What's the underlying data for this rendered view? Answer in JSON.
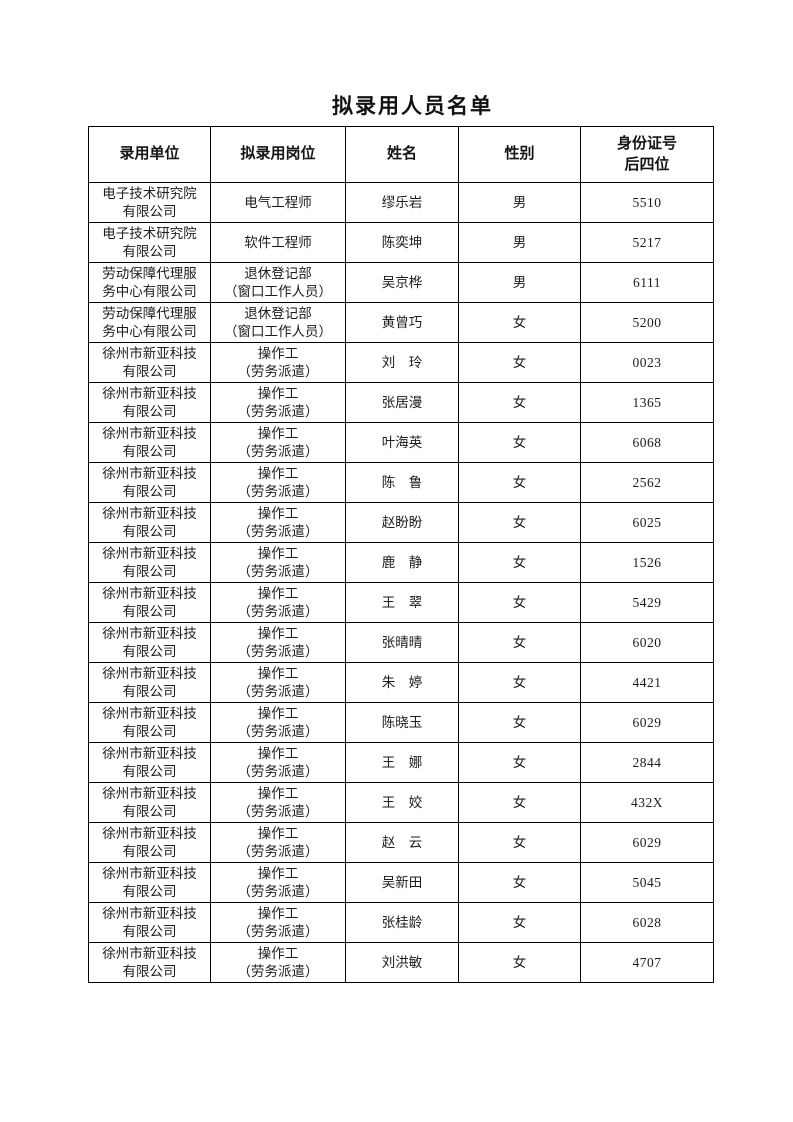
{
  "page": {
    "title": "拟录用人员名单"
  },
  "table": {
    "headers": [
      "录用单位",
      "拟录用岗位",
      "姓名",
      "性别",
      "身份证号\n后四位"
    ],
    "rows": [
      {
        "unit": "电子技术研究院\n有限公司",
        "position": "电气工程师",
        "name": "缪乐岩",
        "gender": "男",
        "id4": "5510"
      },
      {
        "unit": "电子技术研究院\n有限公司",
        "position": "软件工程师",
        "name": "陈奕坤",
        "gender": "男",
        "id4": "5217"
      },
      {
        "unit": "劳动保障代理服\n务中心有限公司",
        "position": "退休登记部\n（窗口工作人员）",
        "name": "吴京桦",
        "gender": "男",
        "id4": "6111"
      },
      {
        "unit": "劳动保障代理服\n务中心有限公司",
        "position": "退休登记部\n（窗口工作人员）",
        "name": "黄曾巧",
        "gender": "女",
        "id4": "5200"
      },
      {
        "unit": "徐州市新亚科技\n有限公司",
        "position": "操作工\n（劳务派遣）",
        "name": "刘　玲",
        "gender": "女",
        "id4": "0023"
      },
      {
        "unit": "徐州市新亚科技\n有限公司",
        "position": "操作工\n（劳务派遣）",
        "name": "张居漫",
        "gender": "女",
        "id4": "1365"
      },
      {
        "unit": "徐州市新亚科技\n有限公司",
        "position": "操作工\n（劳务派遣）",
        "name": "叶海英",
        "gender": "女",
        "id4": "6068"
      },
      {
        "unit": "徐州市新亚科技\n有限公司",
        "position": "操作工\n（劳务派遣）",
        "name": "陈　鲁",
        "gender": "女",
        "id4": "2562"
      },
      {
        "unit": "徐州市新亚科技\n有限公司",
        "position": "操作工\n（劳务派遣）",
        "name": "赵盼盼",
        "gender": "女",
        "id4": "6025"
      },
      {
        "unit": "徐州市新亚科技\n有限公司",
        "position": "操作工\n（劳务派遣）",
        "name": "鹿　静",
        "gender": "女",
        "id4": "1526"
      },
      {
        "unit": "徐州市新亚科技\n有限公司",
        "position": "操作工\n（劳务派遣）",
        "name": "王　翠",
        "gender": "女",
        "id4": "5429"
      },
      {
        "unit": "徐州市新亚科技\n有限公司",
        "position": "操作工\n（劳务派遣）",
        "name": "张晴晴",
        "gender": "女",
        "id4": "6020"
      },
      {
        "unit": "徐州市新亚科技\n有限公司",
        "position": "操作工\n（劳务派遣）",
        "name": "朱　婷",
        "gender": "女",
        "id4": "4421"
      },
      {
        "unit": "徐州市新亚科技\n有限公司",
        "position": "操作工\n（劳务派遣）",
        "name": "陈晓玉",
        "gender": "女",
        "id4": "6029"
      },
      {
        "unit": "徐州市新亚科技\n有限公司",
        "position": "操作工\n（劳务派遣）",
        "name": "王　娜",
        "gender": "女",
        "id4": "2844"
      },
      {
        "unit": "徐州市新亚科技\n有限公司",
        "position": "操作工\n（劳务派遣）",
        "name": "王　姣",
        "gender": "女",
        "id4": "432X"
      },
      {
        "unit": "徐州市新亚科技\n有限公司",
        "position": "操作工\n（劳务派遣）",
        "name": "赵　云",
        "gender": "女",
        "id4": "6029"
      },
      {
        "unit": "徐州市新亚科技\n有限公司",
        "position": "操作工\n（劳务派遣）",
        "name": "吴新田",
        "gender": "女",
        "id4": "5045"
      },
      {
        "unit": "徐州市新亚科技\n有限公司",
        "position": "操作工\n（劳务派遣）",
        "name": "张桂龄",
        "gender": "女",
        "id4": "6028"
      },
      {
        "unit": "徐州市新亚科技\n有限公司",
        "position": "操作工\n（劳务派遣）",
        "name": "刘洪敏",
        "gender": "女",
        "id4": "4707"
      }
    ]
  }
}
